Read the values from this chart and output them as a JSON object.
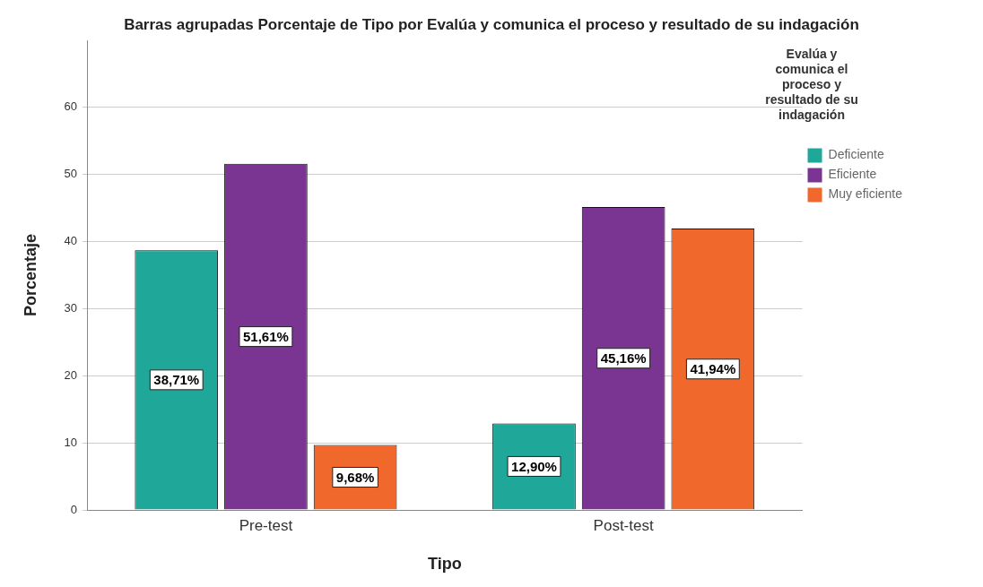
{
  "chart_data": {
    "type": "bar",
    "title": "Barras agrupadas Porcentaje de Tipo por Evalúa y comunica el proceso y resultado de su indagación",
    "xlabel": "Tipo",
    "ylabel": "Porcentaje",
    "legend_title": "Evalúa y comunica el proceso y resultado de su indagación",
    "categories": [
      "Pre-test",
      "Post-test"
    ],
    "series": [
      {
        "name": "Deficiente",
        "color": "#1fa89a",
        "values": [
          38.71,
          12.9
        ],
        "value_labels": [
          "38,71%",
          "12,90%"
        ]
      },
      {
        "name": "Eficiente",
        "color": "#7a3592",
        "values": [
          51.61,
          45.16
        ],
        "value_labels": [
          "51,61%",
          "45,16%"
        ]
      },
      {
        "name": "Muy eficiente",
        "color": "#f0682b",
        "values": [
          9.68,
          41.94
        ],
        "value_labels": [
          "9,68%",
          "41,94%"
        ]
      }
    ],
    "ylim": [
      0,
      70
    ],
    "yticks": [
      0,
      10,
      20,
      30,
      40,
      50,
      60
    ],
    "grid": "y",
    "legend": "right"
  }
}
